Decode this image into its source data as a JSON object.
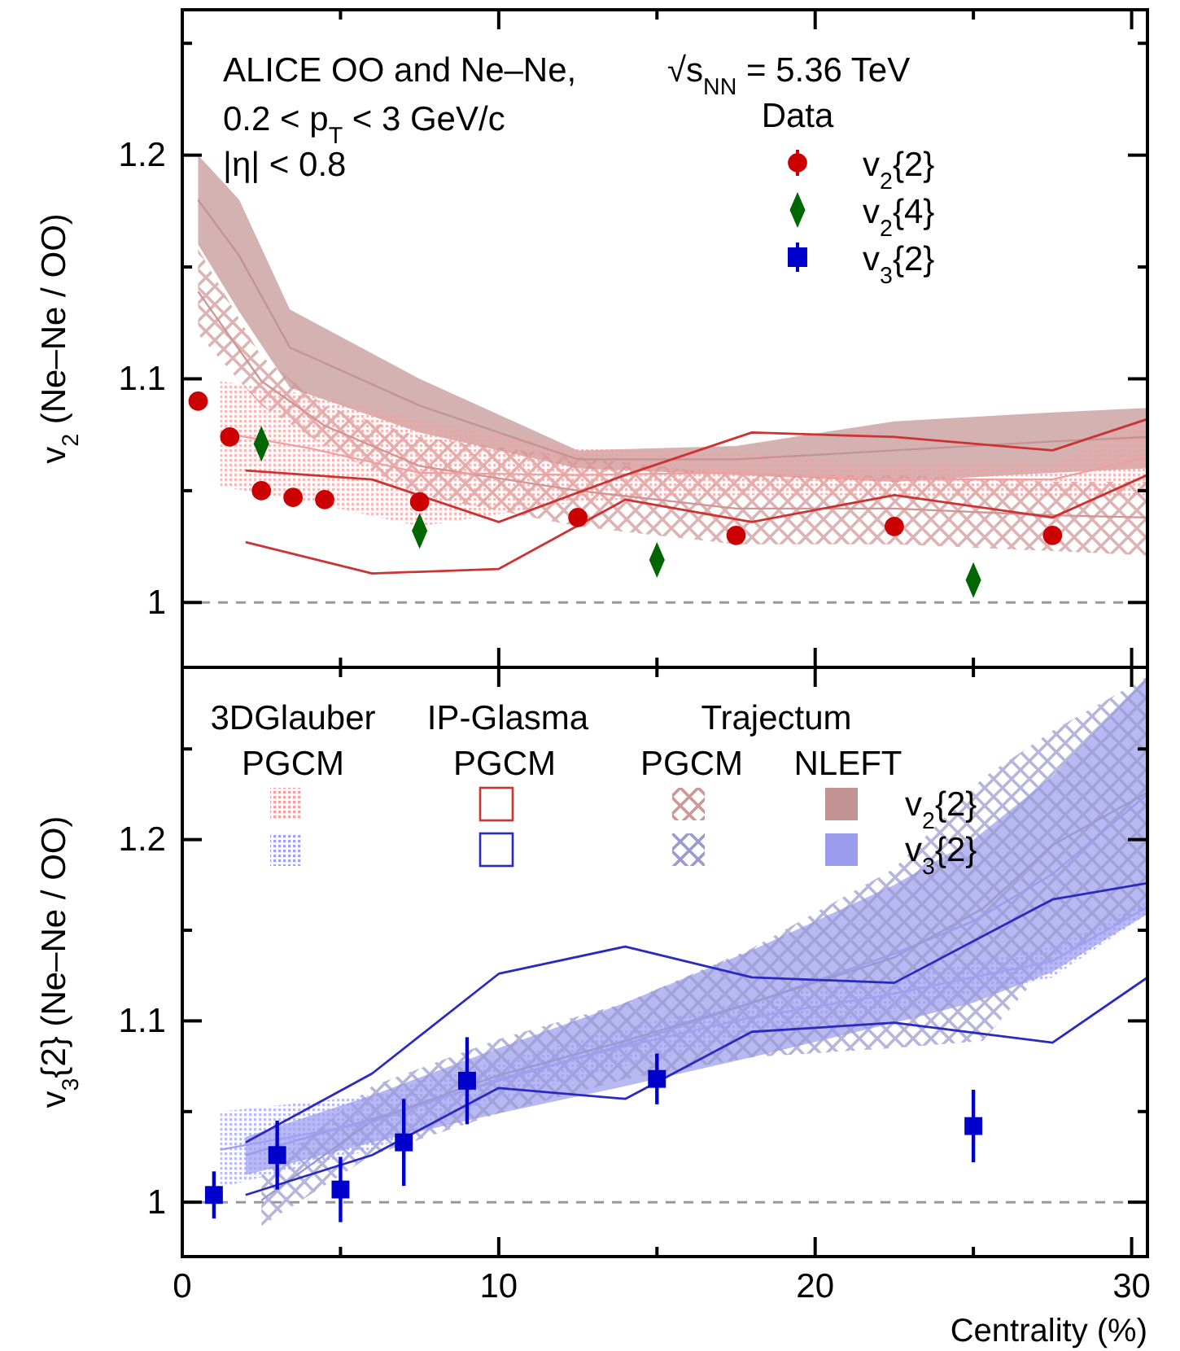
{
  "chart_data": [
    {
      "type": "scatter",
      "ylabel": "v$_{2}$ (Ne–Ne / OO)",
      "xlim": [
        0,
        30.5
      ],
      "ylim": [
        0.971,
        1.265
      ],
      "xticks": [
        0,
        {
          "value": 5,
          "label": null
        },
        10,
        {
          "value": 15,
          "label": null
        },
        20,
        {
          "value": 25,
          "label": null
        },
        30
      ],
      "yticks": [
        1,
        {
          "value": 1.05,
          "label": null
        },
        1.1,
        {
          "value": 1.15,
          "label": null
        },
        1.2,
        {
          "value": 1.25,
          "label": null
        }
      ],
      "tick_labels": "y",
      "legend": "top right",
      "legend_title": "Data",
      "ref_lines": [
        {
          "axis": "y",
          "value": 1,
          "color": "#999999",
          "line_style": "dashed"
        }
      ],
      "annotations": [
        "ALICE OO and Ne–Ne,",
        "√s$_{NN}$ = 5.36 TeV",
        "0.2 < p$_{T}$ < 3 GeV/c",
        "|η| < 0.8",
        "v$_{3}${2}"
      ],
      "series": [
        {
          "type": "line",
          "color": "#f0a0a0",
          "x": [
            1.2,
            4,
            7.5,
            12.5,
            17.5,
            22.5,
            27.5,
            30.5
          ],
          "values": [
            1.076,
            1.069,
            1.058,
            1.057,
            1.058,
            1.055,
            1.055,
            1.065
          ],
          "lower": [
            1.052,
            1.045,
            1.034,
            1.045,
            1.048,
            1.048,
            1.047,
            1.048
          ],
          "upper": [
            1.099,
            1.093,
            1.082,
            1.069,
            1.067,
            1.062,
            1.062,
            1.082
          ]
        },
        {
          "type": "line",
          "color": "#cc3333",
          "x": [
            2,
            6,
            10,
            14,
            18,
            22.5,
            27.5,
            30.5
          ],
          "values": [
            1.059,
            1.055,
            1.036,
            1.057,
            1.076,
            1.074,
            1.068,
            1.082
          ]
        },
        {
          "type": "line",
          "color": "#cc3333",
          "x": [
            2,
            6,
            10,
            14,
            18,
            22.5,
            27.5,
            30.5
          ],
          "values": [
            1.027,
            1.013,
            1.015,
            1.046,
            1.036,
            1.048,
            1.038,
            1.057
          ]
        },
        {
          "type": "line",
          "color": "#d09595",
          "x": [
            0.5,
            2.5,
            4.5,
            7.5,
            12.5,
            17.5,
            22.5,
            27.5,
            30.5
          ],
          "values": [
            1.139,
            1.099,
            1.079,
            1.061,
            1.05,
            1.042,
            1.042,
            1.039,
            1.038
          ],
          "lower": [
            1.12,
            1.088,
            1.07,
            1.048,
            1.034,
            1.026,
            1.026,
            1.023,
            1.021
          ],
          "upper": [
            1.158,
            1.11,
            1.088,
            1.074,
            1.065,
            1.057,
            1.057,
            1.054,
            1.054
          ]
        },
        {
          "type": "line",
          "color": "#c49494",
          "x": [
            0.5,
            1.8,
            3.4,
            7.5,
            12.5,
            17.5,
            22.5,
            27.5,
            30.5
          ],
          "values": [
            1.18,
            1.155,
            1.114,
            1.088,
            1.064,
            1.064,
            1.068,
            1.072,
            1.074
          ],
          "lower": [
            1.16,
            1.13,
            1.096,
            1.076,
            1.06,
            1.057,
            1.054,
            1.058,
            1.06
          ],
          "upper": [
            1.2,
            1.18,
            1.131,
            1.1,
            1.068,
            1.07,
            1.081,
            1.085,
            1.087
          ]
        },
        {
          "name": "v$_{2}${2}",
          "marker": "circle",
          "color": "#cc0000",
          "x": [
            0.5,
            1.5,
            2.5,
            3.5,
            4.5,
            7.5,
            12.5,
            17.5,
            22.5,
            27.5
          ],
          "values": [
            1.09,
            1.074,
            1.05,
            1.047,
            1.046,
            1.045,
            1.038,
            1.03,
            1.034,
            1.03
          ],
          "errors": [
            0.002,
            0.002,
            0.004,
            0.002,
            0.004,
            0.002,
            0.002,
            0.002,
            0.002,
            0.002
          ]
        },
        {
          "name": "v$_{2}${4}",
          "marker": "diamond",
          "color": "#006600",
          "x": [
            2.5,
            7.5,
            15,
            25
          ],
          "values": [
            1.071,
            1.032,
            1.019,
            1.01
          ],
          "errors": [
            0.003,
            0.004,
            0.004,
            0.003
          ]
        }
      ]
    },
    {
      "type": "scatter",
      "ylabel": "v$_{3}${2} (Ne–Ne / OO)",
      "xlabel": "Centrality (%)",
      "xlim": [
        0,
        30.5
      ],
      "ylim": [
        0.97,
        1.295
      ],
      "xticks": [
        0,
        {
          "value": 5,
          "label": null
        },
        10,
        {
          "value": 15,
          "label": null
        },
        20,
        {
          "value": 25,
          "label": null
        },
        30
      ],
      "yticks": [
        1,
        {
          "value": 1.05,
          "label": null
        },
        1.1,
        {
          "value": 1.15,
          "label": null
        },
        1.2,
        {
          "value": 1.25,
          "label": null
        }
      ],
      "ref_lines": [
        {
          "axis": "y",
          "value": 1,
          "color": "#999999",
          "line_style": "dashed"
        }
      ],
      "annotations": [
        "3DGlauber",
        "PGCM",
        "IP-Glasma",
        "PGCM",
        "Trajectum",
        "PGCM",
        "NLEFT",
        "v$_{2}${2}",
        "v$_{3}${2}"
      ],
      "series": [
        {
          "type": "line",
          "color": "#a0a0f0",
          "x": [
            1.2,
            6,
            10,
            14,
            18,
            22.5,
            27.5,
            30.5
          ],
          "values": [
            1.029,
            1.044,
            1.068,
            1.086,
            1.102,
            1.115,
            1.133,
            1.163
          ],
          "lower": [
            1.008,
            1.029,
            1.057,
            1.075,
            1.092,
            1.105,
            1.124,
            1.159
          ],
          "upper": [
            1.05,
            1.059,
            1.078,
            1.096,
            1.112,
            1.124,
            1.141,
            1.166
          ]
        },
        {
          "type": "line",
          "color": "#2a2ac0",
          "x": [
            2,
            6,
            10,
            14,
            18,
            22.5,
            27.5,
            30.5
          ],
          "values": [
            1.033,
            1.071,
            1.126,
            1.141,
            1.124,
            1.121,
            1.167,
            1.176
          ]
        },
        {
          "type": "line",
          "color": "#2a2ac0",
          "x": [
            2,
            6,
            10,
            14,
            18,
            22.5,
            27.5,
            30.5
          ],
          "values": [
            1.004,
            1.026,
            1.063,
            1.057,
            1.094,
            1.099,
            1.088,
            1.124
          ]
        },
        {
          "type": "line",
          "color": "#9a9ad0",
          "x": [
            2.5,
            6,
            10,
            14,
            18,
            22.5,
            25.3,
            27.5,
            30.5
          ],
          "values": [
            1.001,
            1.045,
            1.07,
            1.089,
            1.11,
            1.135,
            1.162,
            1.197,
            1.226
          ],
          "lower": [
            0.987,
            1.026,
            1.049,
            1.068,
            1.08,
            1.085,
            1.089,
            1.134,
            1.162
          ],
          "upper": [
            1.015,
            1.064,
            1.09,
            1.11,
            1.14,
            1.184,
            1.234,
            1.26,
            1.29
          ]
        },
        {
          "type": "line",
          "color": "#9c9cee",
          "x": [
            2,
            6,
            10,
            14,
            18,
            22.5,
            25,
            27.5,
            30.5
          ],
          "values": [
            1.026,
            1.046,
            1.067,
            1.087,
            1.11,
            1.137,
            1.155,
            1.181,
            1.225
          ],
          "lower": [
            1.015,
            1.033,
            1.049,
            1.064,
            1.08,
            1.099,
            1.11,
            1.127,
            1.159
          ],
          "upper": [
            1.036,
            1.059,
            1.085,
            1.11,
            1.139,
            1.175,
            1.2,
            1.235,
            1.29
          ]
        },
        {
          "marker": "square",
          "color": "#0000cc",
          "x": [
            1,
            3,
            5,
            7,
            9,
            15,
            25
          ],
          "values": [
            1.004,
            1.026,
            1.007,
            1.033,
            1.067,
            1.068,
            1.042
          ],
          "errors": [
            0.013,
            0.019,
            0.018,
            0.024,
            0.024,
            0.014,
            0.02
          ]
        }
      ]
    }
  ]
}
